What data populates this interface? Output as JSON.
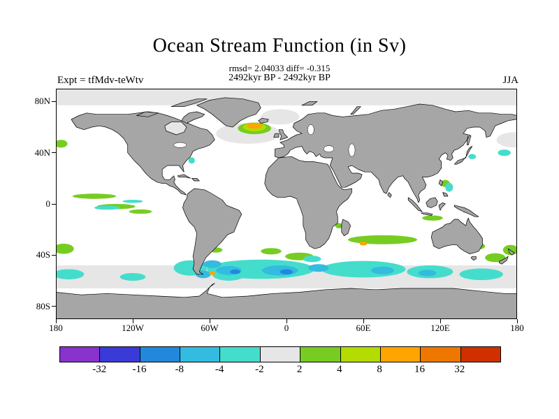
{
  "header": {
    "title": "Ocean Stream Function (in Sv)",
    "stats_line": "rmsd= 2.04033 diff= -0.315",
    "period_line": "2492kyr BP - 2492kyr BP",
    "experiment_label": "Expt = tfMdv-teWtv",
    "season_label": "JJA"
  },
  "axes": {
    "lat_ticks": [
      {
        "label": "80N",
        "lat": 80
      },
      {
        "label": "40N",
        "lat": 40
      },
      {
        "label": "0",
        "lat": 0
      },
      {
        "label": "40S",
        "lat": -40
      },
      {
        "label": "80S",
        "lat": -80
      }
    ],
    "lon_ticks": [
      {
        "label": "180",
        "lon": -180
      },
      {
        "label": "120W",
        "lon": -120
      },
      {
        "label": "60W",
        "lon": -60
      },
      {
        "label": "0",
        "lon": 0
      },
      {
        "label": "60E",
        "lon": 60
      },
      {
        "label": "120E",
        "lon": 120
      },
      {
        "label": "180",
        "lon": 180
      }
    ]
  },
  "colorbar": {
    "tick_labels": [
      "-32",
      "-16",
      "-8",
      "-4",
      "-2",
      "2",
      "4",
      "8",
      "16",
      "32"
    ],
    "colors": [
      "#8833cc",
      "#3a3ad8",
      "#2288dd",
      "#33bbe0",
      "#44ddcc",
      "#e6e6e6",
      "#77cc22",
      "#b4dc00",
      "#ffa500",
      "#ee7700",
      "#d03000"
    ]
  },
  "map_colors": {
    "land": "#a6a6a6",
    "coast": "#000000",
    "ocean": "#ffffff",
    "neutral": "#e6e6e6"
  },
  "chart_data": {
    "type": "heatmap",
    "title": "Ocean Stream Function (in Sv)",
    "units": "Sv",
    "rmsd": 2.04033,
    "diff": -0.315,
    "experiment": "tfMdv-teWtv",
    "period": "2492kyr BP - 2492kyr BP",
    "season": "JJA",
    "projection": "equirectangular",
    "lon_range": [
      -180,
      180
    ],
    "lat_range": [
      -90,
      90
    ],
    "contour_levels": [
      -32,
      -16,
      -8,
      -4,
      -2,
      2,
      4,
      8,
      16,
      32
    ],
    "band_format": "[lat_min, lat_max, color_level_index]",
    "bands": [
      [
        77,
        90,
        5
      ],
      [
        -66,
        -48,
        5
      ]
    ],
    "feature_format": "[lon_center, lat_center, rx_deg, ry_deg, color_level_index]",
    "features": [
      [
        -30,
        55,
        25,
        8,
        5
      ],
      [
        178,
        50,
        14,
        6,
        5
      ],
      [
        -5,
        68,
        15,
        6,
        5
      ],
      [
        -25,
        59,
        13,
        4.5,
        6
      ],
      [
        -150,
        6,
        17,
        2,
        6
      ],
      [
        -133,
        -2,
        15,
        2,
        6
      ],
      [
        -114,
        -6,
        9,
        1.7,
        6
      ],
      [
        -176,
        47,
        5,
        3,
        6
      ],
      [
        -174,
        -35,
        8,
        4,
        6
      ],
      [
        175,
        -36,
        6,
        4,
        6
      ],
      [
        75,
        -28,
        27,
        3.5,
        6
      ],
      [
        10,
        -41,
        11,
        3,
        6
      ],
      [
        -12,
        -37,
        8,
        2.5,
        6
      ],
      [
        163,
        -42,
        8,
        3.5,
        6
      ],
      [
        124,
        16,
        3.5,
        2.8,
        6
      ],
      [
        114,
        -11,
        8,
        2,
        6
      ],
      [
        41,
        -17,
        3,
        2,
        6
      ],
      [
        150,
        -33,
        5,
        2.5,
        6
      ],
      [
        -55,
        -36,
        5,
        2,
        6
      ],
      [
        -25,
        60,
        9,
        3.2,
        7
      ],
      [
        -20,
        -51,
        42,
        7.5,
        4
      ],
      [
        60,
        -51,
        33,
        6.5,
        4
      ],
      [
        112,
        -53,
        18,
        5,
        4
      ],
      [
        152,
        -55,
        17,
        4.5,
        4
      ],
      [
        -75,
        -50,
        13,
        6,
        4
      ],
      [
        -45,
        -55,
        13,
        5,
        4
      ],
      [
        -170,
        -55,
        12,
        4,
        4
      ],
      [
        -120,
        -57,
        10,
        3,
        4
      ],
      [
        -74,
        34,
        2.5,
        2.5,
        4
      ],
      [
        170,
        40,
        5,
        2.5,
        4
      ],
      [
        127,
        13,
        3,
        3.5,
        4
      ],
      [
        145,
        37,
        3,
        2,
        4
      ],
      [
        -140,
        -3,
        10,
        1.5,
        4
      ],
      [
        -120,
        2,
        8,
        1.2,
        4
      ],
      [
        20,
        -43,
        7,
        2.5,
        4
      ],
      [
        -45,
        -52,
        10,
        3.5,
        3
      ],
      [
        -5,
        -52,
        14,
        4,
        3
      ],
      [
        25,
        -50,
        8,
        3,
        3
      ],
      [
        75,
        -52,
        9,
        3,
        3
      ],
      [
        -65,
        -55,
        6,
        3,
        3
      ],
      [
        110,
        -54,
        7,
        2.5,
        3
      ],
      [
        -58,
        -47,
        7,
        3,
        3
      ],
      [
        -40,
        -53,
        4,
        1.8,
        2
      ],
      [
        0,
        -53,
        5,
        2,
        2
      ],
      [
        -25,
        61,
        6,
        2.2,
        8
      ],
      [
        60,
        -31,
        3,
        1.5,
        8
      ],
      [
        23,
        -33,
        3,
        1.5,
        8
      ],
      [
        -58,
        -54,
        2.5,
        1.5,
        8
      ]
    ]
  }
}
